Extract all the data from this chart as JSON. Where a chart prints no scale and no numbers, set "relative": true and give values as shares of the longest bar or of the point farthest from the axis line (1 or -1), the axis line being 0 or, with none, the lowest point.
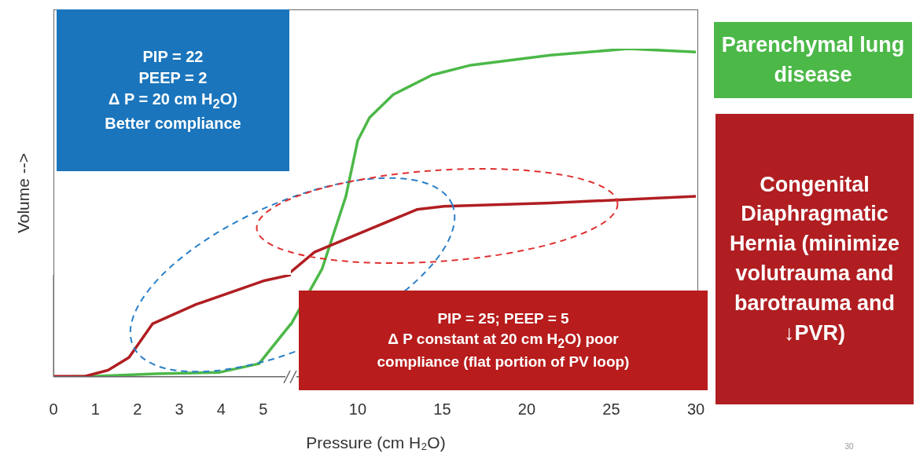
{
  "chart_data": [
    {
      "type": "line",
      "relative": true,
      "ylabel": "Volume -->",
      "xlim": [
        0,
        5.66
      ],
      "xticks": [
        0,
        1,
        2,
        3,
        4,
        5
      ],
      "series": [
        {
          "color": "#4cb848",
          "x": [
            0,
            0.94,
            2.45,
            3.96,
            4.9,
            5.66
          ],
          "values": [
            0,
            0.006,
            0.03,
            0.045,
            0.13,
            0.52
          ]
        },
        {
          "color": "#b01e22",
          "x": [
            0,
            0.75,
            1.3,
            1.8,
            2.36,
            3.4,
            5,
            5.66
          ],
          "values": [
            0.006,
            0.006,
            0.065,
            0.19,
            0.52,
            0.71,
            0.94,
            1
          ]
        }
      ],
      "annotations": [
        "PIP = 22\nPEEP = 2\nΔ P = 20 cm H$_{2}$O)\nBetter compliance"
      ]
    },
    {
      "type": "line",
      "relative": true,
      "xlabel": "Pressure (cm H₂O)",
      "xlim": [
        6.05,
        30
      ],
      "xticks": [
        10,
        15,
        20,
        25,
        30
      ],
      "legend": "right",
      "series": [
        {
          "name": "Parenchymal lung disease",
          "color": "#4cb848",
          "x": [
            6.05,
            7.9,
            9.3,
            10,
            10.7,
            12.1,
            14.4,
            16.7,
            21.4,
            26,
            30
          ],
          "values": [
            0.16,
            0.33,
            0.55,
            0.72,
            0.79,
            0.86,
            0.92,
            0.95,
            0.98,
            1,
            0.99
          ]
        },
        {
          "name": "Congenital Diaphragmatic Hernia (minimize volutrauma and barotrauma and ↓PVR)",
          "color": "#b01e22",
          "x": [
            6.05,
            7.44,
            10.7,
            13.5,
            15.1,
            21.4,
            30
          ],
          "values": [
            0.32,
            0.38,
            0.45,
            0.51,
            0.52,
            0.53,
            0.55
          ]
        }
      ],
      "annotations": [
        "PIP = 25; PEEP = 5\nΔ P constant at 20 cm H$_{2}$O) poor\ncompliance (flat portion of PV loop)",
        "30"
      ]
    }
  ]
}
